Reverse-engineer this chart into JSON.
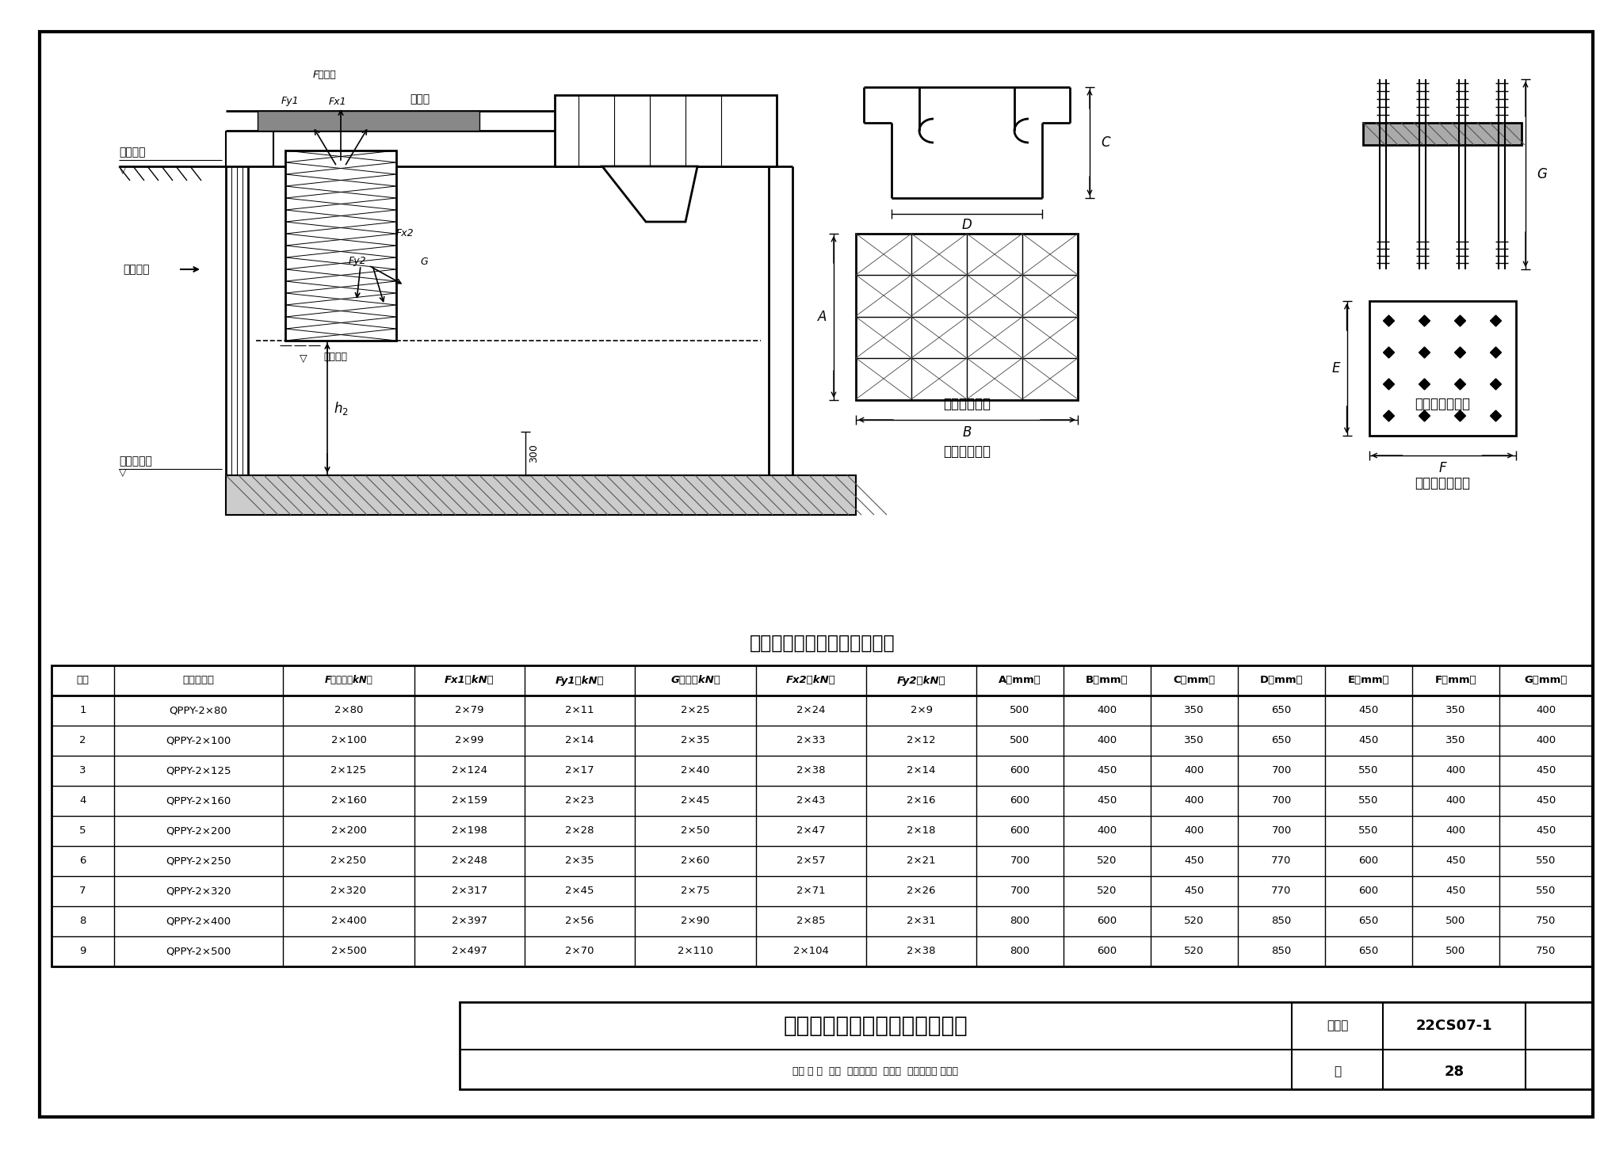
{
  "title_table": "上翻式闸门受力参数及尺寸表",
  "drawing_title": "上翻式闸门受力及预埋件布置图",
  "atlas_label": "图集号",
  "atlas_no": "22CS07-1",
  "page_label": "页",
  "page_no": "28",
  "bottom_row2": "审核 李 靖  企着  校对刘文攀  习义事  设计守劳仪 守另仪",
  "col_headers": [
    "序号",
    "启闭机型号",
    "F启闭力（kN）",
    "Fx1（kN）",
    "Fy1（kN）",
    "G重力（kN）",
    "Fx2（kN）",
    "Fy2（kN）",
    "A（mm）",
    "B（mm）",
    "C（mm）",
    "D（mm）",
    "E（mm）",
    "F（mm）",
    "G（mm）"
  ],
  "col_headers_italic": [
    false,
    false,
    true,
    true,
    true,
    true,
    true,
    true,
    false,
    false,
    false,
    false,
    false,
    false,
    false
  ],
  "rows": [
    [
      "1",
      "QPPY-2×80",
      "2×80",
      "2×79",
      "2×11",
      "2×25",
      "2×24",
      "2×9",
      "500",
      "400",
      "350",
      "650",
      "450",
      "350",
      "400"
    ],
    [
      "2",
      "QPPY-2×100",
      "2×100",
      "2×99",
      "2×14",
      "2×35",
      "2×33",
      "2×12",
      "500",
      "400",
      "350",
      "650",
      "450",
      "350",
      "400"
    ],
    [
      "3",
      "QPPY-2×125",
      "2×125",
      "2×124",
      "2×17",
      "2×40",
      "2×38",
      "2×14",
      "600",
      "450",
      "400",
      "700",
      "550",
      "400",
      "450"
    ],
    [
      "4",
      "QPPY-2×160",
      "2×160",
      "2×159",
      "2×23",
      "2×45",
      "2×43",
      "2×16",
      "600",
      "450",
      "400",
      "700",
      "550",
      "400",
      "450"
    ],
    [
      "5",
      "QPPY-2×200",
      "2×200",
      "2×198",
      "2×28",
      "2×50",
      "2×47",
      "2×18",
      "600",
      "400",
      "400",
      "700",
      "550",
      "400",
      "450"
    ],
    [
      "6",
      "QPPY-2×250",
      "2×250",
      "2×248",
      "2×35",
      "2×60",
      "2×57",
      "2×21",
      "700",
      "520",
      "450",
      "770",
      "600",
      "450",
      "550"
    ],
    [
      "7",
      "QPPY-2×320",
      "2×320",
      "2×317",
      "2×45",
      "2×75",
      "2×71",
      "2×26",
      "700",
      "520",
      "450",
      "770",
      "600",
      "450",
      "550"
    ],
    [
      "8",
      "QPPY-2×400",
      "2×400",
      "2×397",
      "2×56",
      "2×90",
      "2×85",
      "2×31",
      "800",
      "600",
      "520",
      "850",
      "650",
      "500",
      "750"
    ],
    [
      "9",
      "QPPY-2×500",
      "2×500",
      "2×497",
      "2×70",
      "2×110",
      "2×104",
      "2×38",
      "800",
      "600",
      "520",
      "850",
      "650",
      "500",
      "750"
    ]
  ],
  "bg_color": "#ffffff",
  "lc": "#000000",
  "tc": "#000000"
}
